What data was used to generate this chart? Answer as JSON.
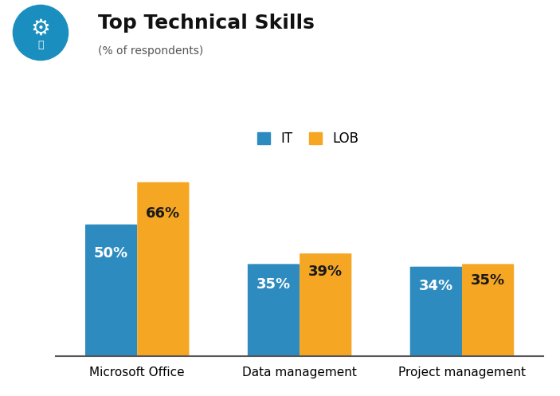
{
  "title": "Top Technical Skills",
  "subtitle": "(% of respondents)",
  "categories": [
    "Microsoft Office",
    "Data management",
    "Project management"
  ],
  "it_values": [
    50,
    35,
    34
  ],
  "lob_values": [
    66,
    39,
    35
  ],
  "it_color": "#2E8BC0",
  "lob_color": "#F5A623",
  "it_label": "IT",
  "lob_label": "LOB",
  "bar_label_color_it": "#ffffff",
  "bar_label_color_lob": "#1a1a1a",
  "ylim": [
    0,
    78
  ],
  "bar_width": 0.32,
  "background_color": "#ffffff",
  "title_fontsize": 18,
  "subtitle_fontsize": 10,
  "legend_fontsize": 12,
  "tick_fontsize": 11,
  "bar_label_fontsize": 13,
  "icon_circle_color": "#1A8FBF"
}
